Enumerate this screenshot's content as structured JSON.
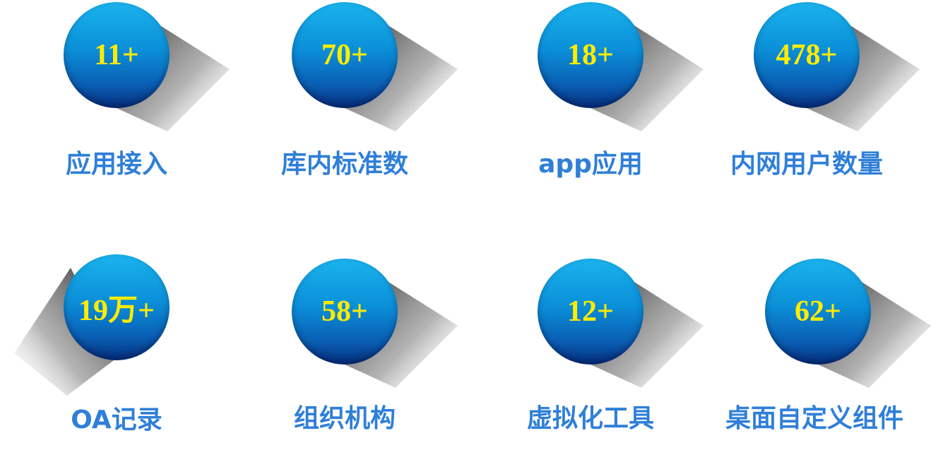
{
  "colors": {
    "circle_top": "#1ab4ee",
    "circle_bottom": "#062f7e",
    "value_text": "#ffec00",
    "label_text": "#2f7fd8"
  },
  "stats": [
    {
      "value": "11+",
      "label": "应用接入"
    },
    {
      "value": "70+",
      "label": "库内标准数"
    },
    {
      "value": "18+",
      "label": "app应用"
    },
    {
      "value": "478+",
      "label": "内网用户数量"
    },
    {
      "value": "19万+",
      "label": "OA记录"
    },
    {
      "value": "58+",
      "label": "组织机构"
    },
    {
      "value": "12+",
      "label": "虚拟化工具"
    },
    {
      "value": "62+",
      "label": "桌面自定义组件"
    }
  ]
}
